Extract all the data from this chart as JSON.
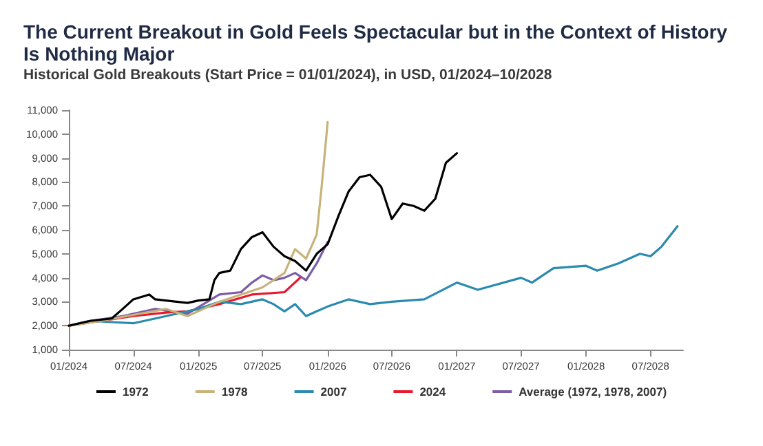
{
  "chart_data": {
    "type": "line",
    "title": "The Current Breakout in Gold Feels Spectacular but in the Context of History Is Nothing Major",
    "subtitle": "Historical Gold Breakouts (Start Price = 01/01/2024), in USD, 01/2024–10/2028",
    "xlim": [
      "2024-01-01",
      "2028-10-01"
    ],
    "xticks": [
      {
        "value": "2024-01-01",
        "label": "01/2024"
      },
      {
        "value": "2024-07-01",
        "label": "07/2024"
      },
      {
        "value": "2025-01-01",
        "label": "01/2025"
      },
      {
        "value": "2025-07-01",
        "label": "07/2025"
      },
      {
        "value": "2026-01-01",
        "label": "01/2026"
      },
      {
        "value": "2026-07-01",
        "label": "07/2026"
      },
      {
        "value": "2027-01-01",
        "label": "01/2027"
      },
      {
        "value": "2027-07-01",
        "label": "07/2027"
      },
      {
        "value": "2028-01-01",
        "label": "01/2028"
      },
      {
        "value": "2028-07-01",
        "label": "07/2028"
      }
    ],
    "ylim": [
      1000,
      11000
    ],
    "yticks": [
      {
        "value": 1000,
        "label": "1,000"
      },
      {
        "value": 2000,
        "label": "2,000"
      },
      {
        "value": 3000,
        "label": "3,000"
      },
      {
        "value": 4000,
        "label": "4,000"
      },
      {
        "value": 5000,
        "label": "5,000"
      },
      {
        "value": 6000,
        "label": "6,000"
      },
      {
        "value": 7000,
        "label": "7,000"
      },
      {
        "value": 8000,
        "label": "8,000"
      },
      {
        "value": 9000,
        "label": "9,000"
      },
      {
        "value": 10000,
        "label": "10,000"
      },
      {
        "value": 11000,
        "label": "11,000"
      }
    ],
    "legend": "bottom",
    "marker": "none",
    "line_style": "solid",
    "series": [
      {
        "name": "1972",
        "color": "#000000",
        "x": [
          "2024-01-01",
          "2024-03-01",
          "2024-05-01",
          "2024-06-01",
          "2024-07-01",
          "2024-08-15",
          "2024-09-01",
          "2024-10-01",
          "2024-11-01",
          "2024-12-01",
          "2025-01-01",
          "2025-02-01",
          "2025-02-15",
          "2025-03-01",
          "2025-04-01",
          "2025-05-01",
          "2025-06-01",
          "2025-07-01",
          "2025-08-01",
          "2025-09-01",
          "2025-10-01",
          "2025-11-01",
          "2025-12-01",
          "2026-01-01",
          "2026-02-01",
          "2026-03-01",
          "2026-04-01",
          "2026-05-01",
          "2026-06-01",
          "2026-07-01",
          "2026-08-01",
          "2026-09-01",
          "2026-10-01",
          "2026-11-01",
          "2026-12-01",
          "2027-01-01"
        ],
        "values": [
          2000,
          2200,
          2300,
          2700,
          3100,
          3300,
          3100,
          3050,
          3000,
          2950,
          3050,
          3100,
          3900,
          4200,
          4300,
          5200,
          5700,
          5900,
          5300,
          4900,
          4700,
          4300,
          5000,
          5400,
          6600,
          7600,
          8200,
          8300,
          7800,
          6450,
          7100,
          7000,
          6800,
          7300,
          8800,
          9200
        ]
      },
      {
        "name": "1978",
        "color": "#c8b27a",
        "x": [
          "2024-01-01",
          "2024-04-01",
          "2024-07-01",
          "2024-10-01",
          "2024-12-01",
          "2025-03-01",
          "2025-05-01",
          "2025-07-01",
          "2025-09-01",
          "2025-10-01",
          "2025-11-01",
          "2025-12-01",
          "2025-12-15",
          "2026-01-01"
        ],
        "values": [
          2000,
          2200,
          2450,
          2700,
          2400,
          3000,
          3300,
          3600,
          4200,
          5200,
          4800,
          5800,
          7800,
          10500
        ]
      },
      {
        "name": "2007",
        "color": "#2a8ab0",
        "x": [
          "2024-01-01",
          "2024-03-01",
          "2024-05-01",
          "2024-07-01",
          "2024-09-01",
          "2024-11-01",
          "2025-01-01",
          "2025-03-01",
          "2025-05-01",
          "2025-07-01",
          "2025-08-01",
          "2025-09-01",
          "2025-10-01",
          "2025-11-01",
          "2025-12-01",
          "2026-01-01",
          "2026-03-01",
          "2026-05-01",
          "2026-07-01",
          "2026-10-01",
          "2027-01-01",
          "2027-03-01",
          "2027-07-01",
          "2027-08-01",
          "2027-10-01",
          "2028-01-01",
          "2028-02-01",
          "2028-04-01",
          "2028-06-01",
          "2028-07-01",
          "2028-08-01",
          "2028-09-15"
        ],
        "values": [
          2000,
          2200,
          2150,
          2100,
          2300,
          2500,
          2700,
          3000,
          2900,
          3100,
          2900,
          2600,
          2900,
          2400,
          2600,
          2800,
          3100,
          2900,
          3000,
          3100,
          3800,
          3500,
          4000,
          3800,
          4400,
          4500,
          4300,
          4600,
          5000,
          4900,
          5300,
          6150
        ]
      },
      {
        "name": "2024",
        "color": "#e8192c",
        "x": [
          "2024-01-01",
          "2024-04-01",
          "2024-07-01",
          "2024-10-01",
          "2024-12-01",
          "2025-03-01",
          "2025-06-01",
          "2025-09-01",
          "2025-10-15"
        ],
        "values": [
          2000,
          2200,
          2400,
          2550,
          2600,
          2900,
          3300,
          3400,
          4000
        ]
      },
      {
        "name": "Average (1972, 1978, 2007)",
        "color": "#7b5ea7",
        "x": [
          "2024-01-01",
          "2024-03-01",
          "2024-06-01",
          "2024-09-01",
          "2024-12-01",
          "2025-03-01",
          "2025-05-01",
          "2025-06-01",
          "2025-07-01",
          "2025-08-01",
          "2025-09-01",
          "2025-10-01",
          "2025-11-01",
          "2025-12-01",
          "2026-01-01"
        ],
        "values": [
          2000,
          2200,
          2400,
          2700,
          2500,
          3300,
          3400,
          3800,
          4100,
          3900,
          4000,
          4200,
          3900,
          4600,
          5500
        ]
      }
    ]
  }
}
